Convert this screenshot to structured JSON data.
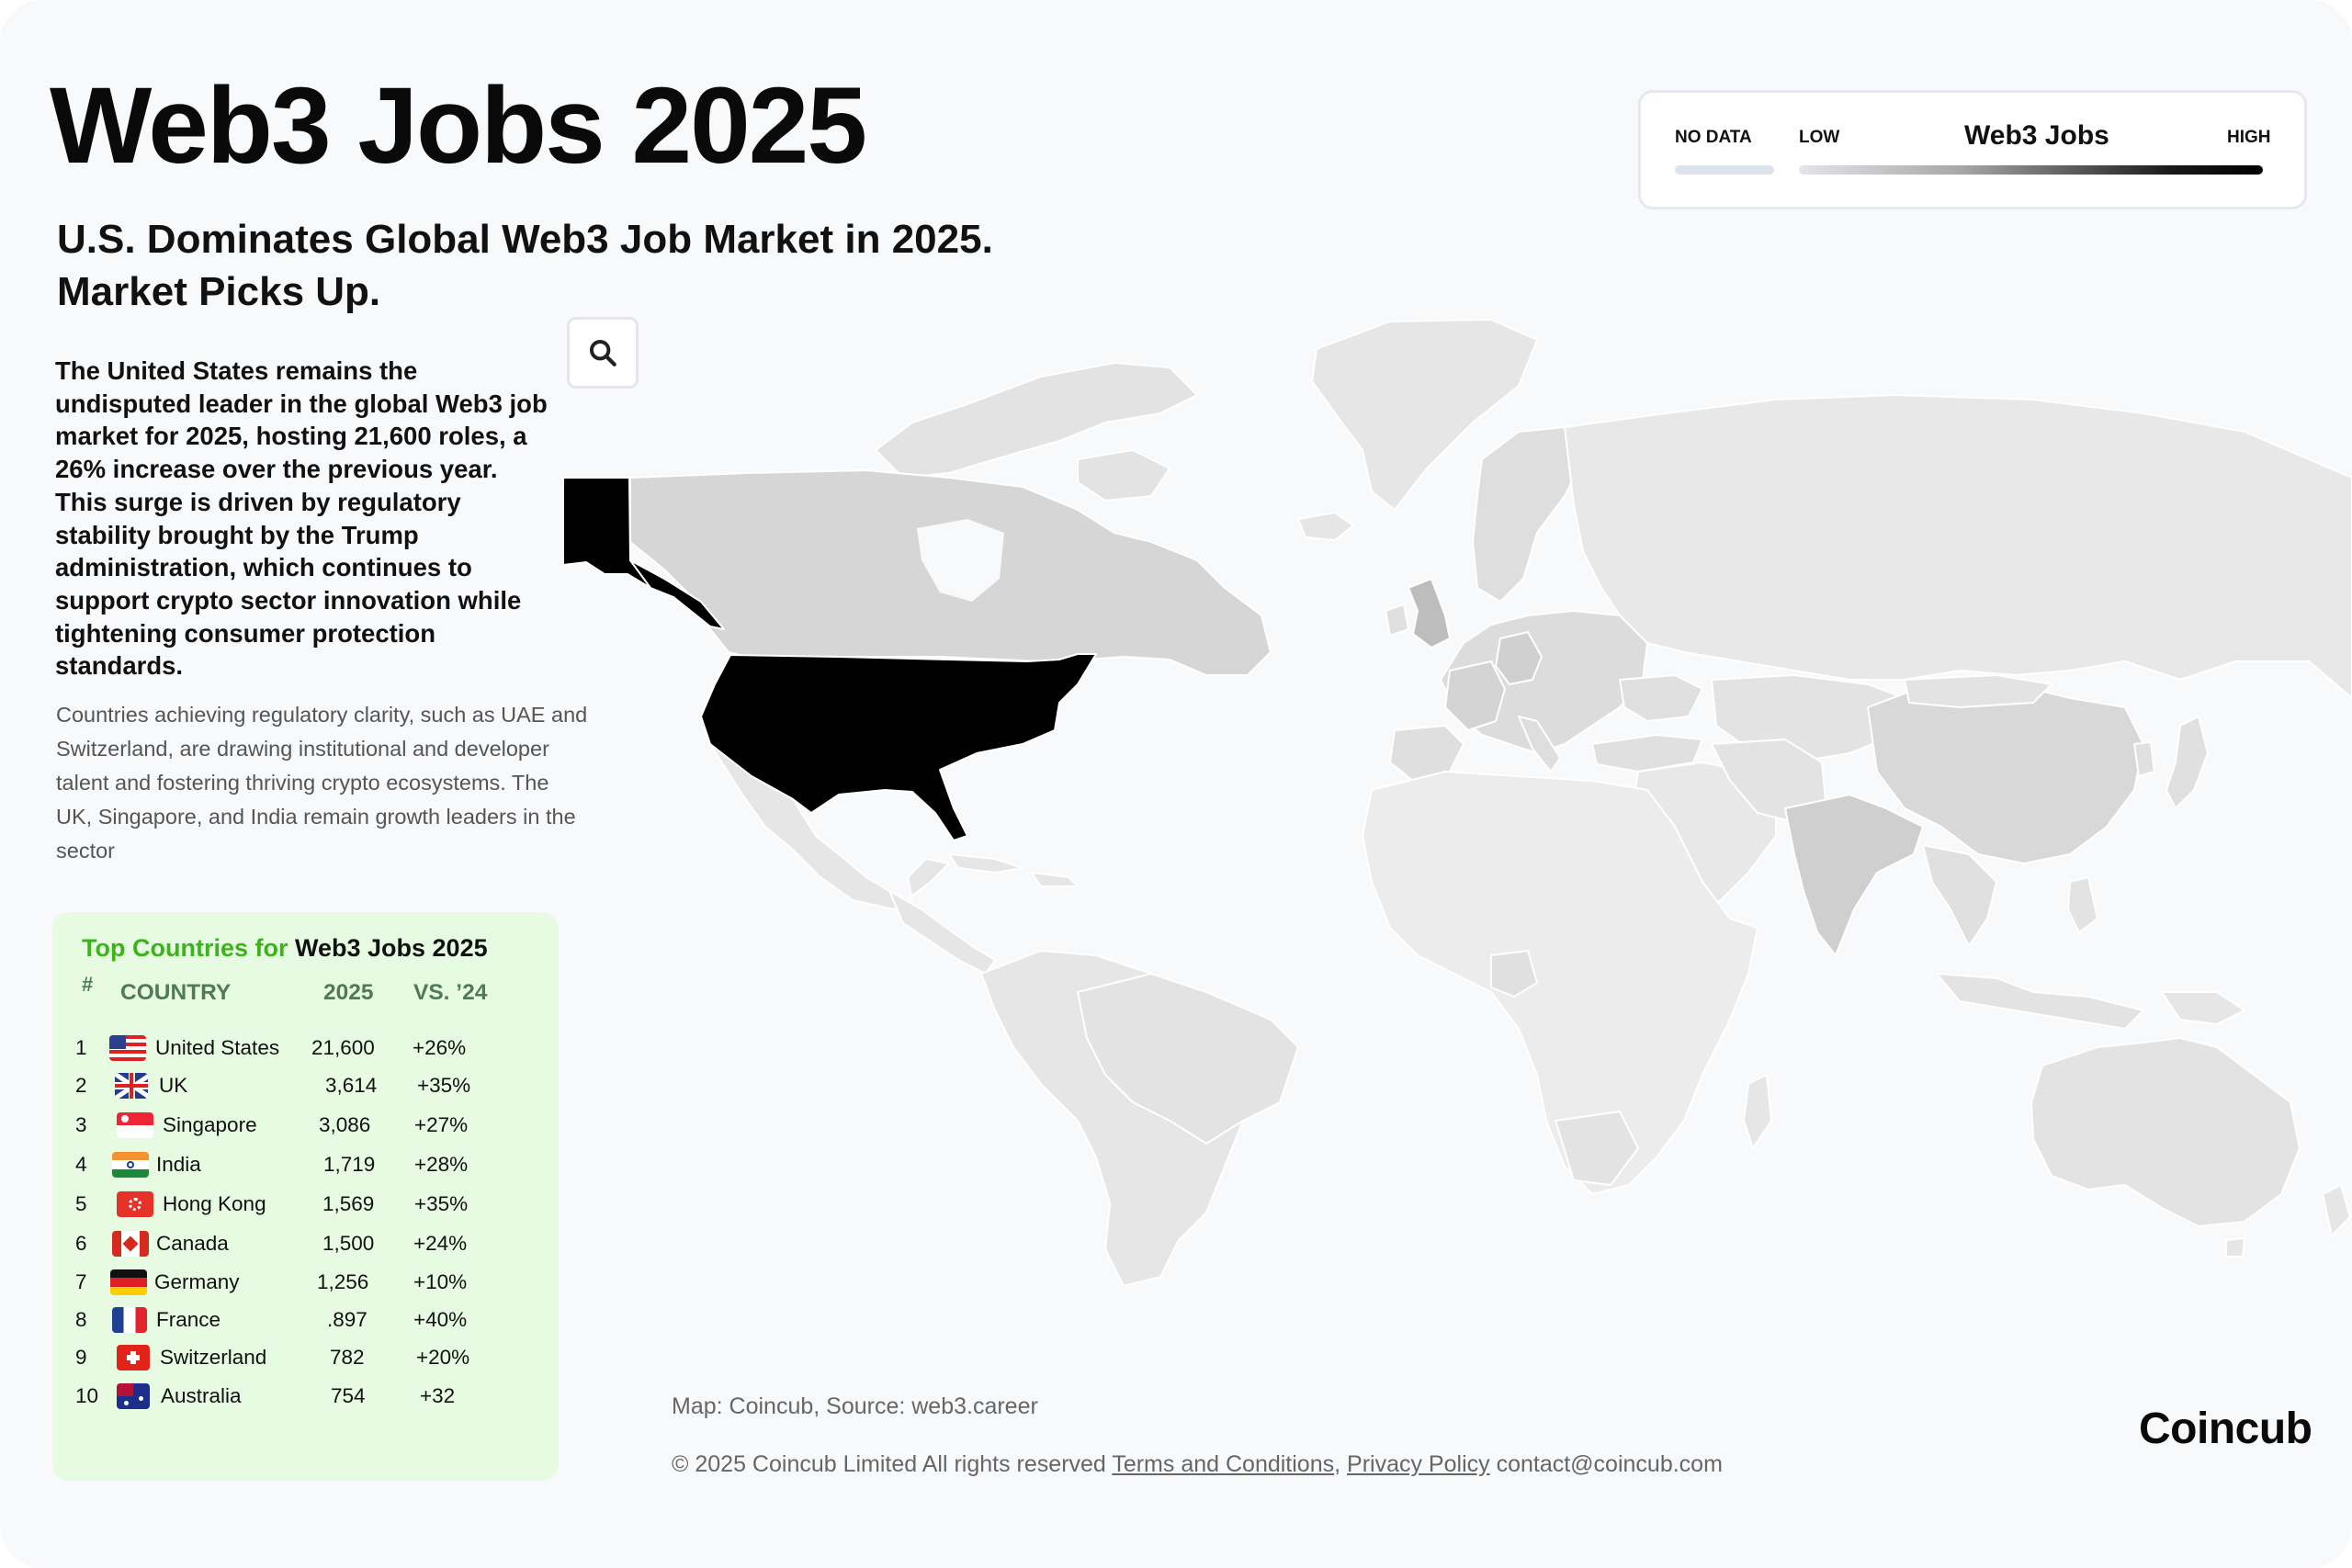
{
  "header": {
    "title": "Web3 Jobs 2025"
  },
  "intro": {
    "subtitle_line1": "U.S. Dominates Global Web3 Job Market in 2025.",
    "subtitle_line2": "Market Picks Up.",
    "lead": "The United States remains the undisputed leader in the global Web3 job market for 2025, hosting 21,600 roles, a 26% increase over the previous year. This surge is driven by regulatory stability brought by the Trump administration, which continues to support crypto sector innovation while tightening consumer protection standards.",
    "body": "Countries achieving regulatory clarity, such as UAE and Switzerland, are drawing institutional and developer talent and fostering thriving crypto ecosystems. The UK, Singapore, and India remain growth leaders in the sector"
  },
  "legend": {
    "no_data": "NO DATA",
    "low": "LOW",
    "title": "Web3 Jobs",
    "high": "HIGH"
  },
  "map": {
    "colors": {
      "highest": "#000000",
      "mid": "#d2d2d2",
      "low": "#e6e6e6",
      "lowest": "#efefef"
    },
    "search_icon": "search-icon"
  },
  "table": {
    "title_prefix": "Top Countries for",
    "title_suffix": "Web3 Jobs 2025",
    "columns": [
      "#",
      "COUNTRY",
      "2025",
      "VS. ’24"
    ],
    "rows": [
      {
        "rank": "1",
        "country": "United States",
        "value": "21,600",
        "change": "+26%",
        "flag": "us-flag"
      },
      {
        "rank": "2",
        "country": "UK",
        "value": "3,614",
        "change": "+35%",
        "flag": "uk-flag"
      },
      {
        "rank": "3",
        "country": "Singapore",
        "value": "3,086",
        "change": "+27%",
        "flag": "singapore-flag"
      },
      {
        "rank": "4",
        "country": "India",
        "value": "1,719",
        "change": "+28%",
        "flag": "india-flag"
      },
      {
        "rank": "5",
        "country": "Hong Kong",
        "value": "1,569",
        "change": "+35%",
        "flag": "hong-kong-flag"
      },
      {
        "rank": "6",
        "country": "Canada",
        "value": "1,500",
        "change": "+24%",
        "flag": "canada-flag"
      },
      {
        "rank": "7",
        "country": "Germany",
        "value": "1,256",
        "change": "+10%",
        "flag": "germany-flag"
      },
      {
        "rank": "8",
        "country": "France",
        "value": ".897",
        "change": "+40%",
        "flag": "france-flag"
      },
      {
        "rank": "9",
        "country": "Switzerland",
        "value": "782",
        "change": "+20%",
        "flag": "switzerland-flag"
      },
      {
        "rank": "10",
        "country": "Australia",
        "value": "754",
        "change": "+32",
        "flag": "australia-flag"
      }
    ]
  },
  "footer": {
    "source": "Map:  Coincub, Source: web3.career",
    "copyright": "© 2025 Coincub Limited  All rights reserved",
    "terms": "Terms and Conditions",
    "comma": ",",
    "privacy": "Privacy Policy",
    "contact": "contact@coincub.com",
    "brand": "Coincub"
  }
}
